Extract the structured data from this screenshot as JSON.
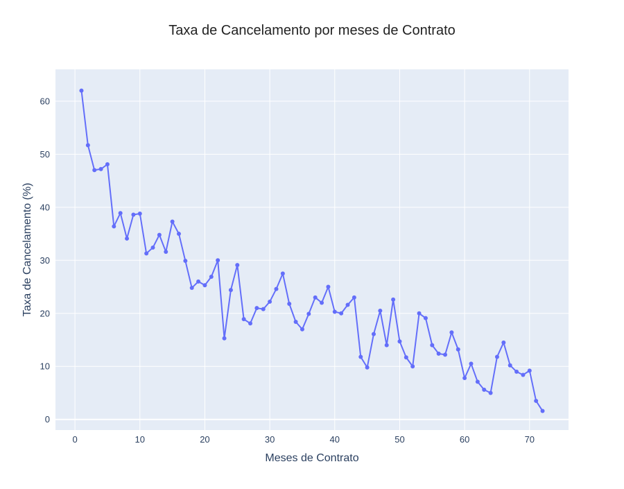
{
  "chart_data": {
    "type": "line",
    "title": "Taxa de Cancelamento por meses de Contrato",
    "xlabel": "Meses de Contrato",
    "ylabel": "Taxa de Cancelamento (%)",
    "xlim": [
      -3,
      76
    ],
    "ylim": [
      -2,
      66
    ],
    "xticks": [
      0,
      10,
      20,
      30,
      40,
      50,
      60,
      70
    ],
    "yticks": [
      0,
      10,
      20,
      30,
      40,
      50,
      60
    ],
    "grid": true,
    "colors": {
      "plot_bg": "#e5ecf6",
      "grid": "#ffffff",
      "line": "#636efa",
      "text": "#2a3f5f"
    },
    "series": [
      {
        "mode": "lines+markers",
        "x": [
          1,
          2,
          3,
          4,
          5,
          6,
          7,
          8,
          9,
          10,
          11,
          12,
          13,
          14,
          15,
          16,
          17,
          18,
          19,
          20,
          21,
          22,
          23,
          24,
          25,
          26,
          27,
          28,
          29,
          30,
          31,
          32,
          33,
          34,
          35,
          36,
          37,
          38,
          39,
          40,
          41,
          42,
          43,
          44,
          45,
          46,
          47,
          48,
          49,
          50,
          51,
          52,
          53,
          54,
          55,
          56,
          57,
          58,
          59,
          60,
          61,
          62,
          63,
          64,
          65,
          66,
          67,
          68,
          69,
          70,
          71,
          72
        ],
        "y": [
          62.0,
          51.7,
          47.0,
          47.2,
          48.1,
          36.4,
          38.9,
          34.1,
          38.6,
          38.8,
          31.3,
          32.4,
          34.8,
          31.6,
          37.3,
          35.0,
          29.9,
          24.8,
          26.0,
          25.3,
          26.9,
          30.0,
          15.3,
          24.4,
          29.1,
          18.9,
          18.1,
          21.0,
          20.8,
          22.2,
          24.6,
          27.5,
          21.8,
          18.4,
          17.0,
          19.9,
          23.0,
          22.0,
          25.0,
          20.3,
          20.0,
          21.6,
          23.0,
          11.8,
          9.8,
          16.1,
          20.5,
          14.0,
          22.6,
          14.7,
          11.7,
          10.0,
          20.0,
          19.1,
          14.0,
          12.4,
          12.2,
          16.4,
          13.2,
          7.8,
          10.5,
          7.1,
          5.6,
          5.0,
          11.8,
          14.5,
          10.2,
          9.0,
          8.4,
          9.2,
          3.5,
          1.6
        ]
      }
    ]
  }
}
